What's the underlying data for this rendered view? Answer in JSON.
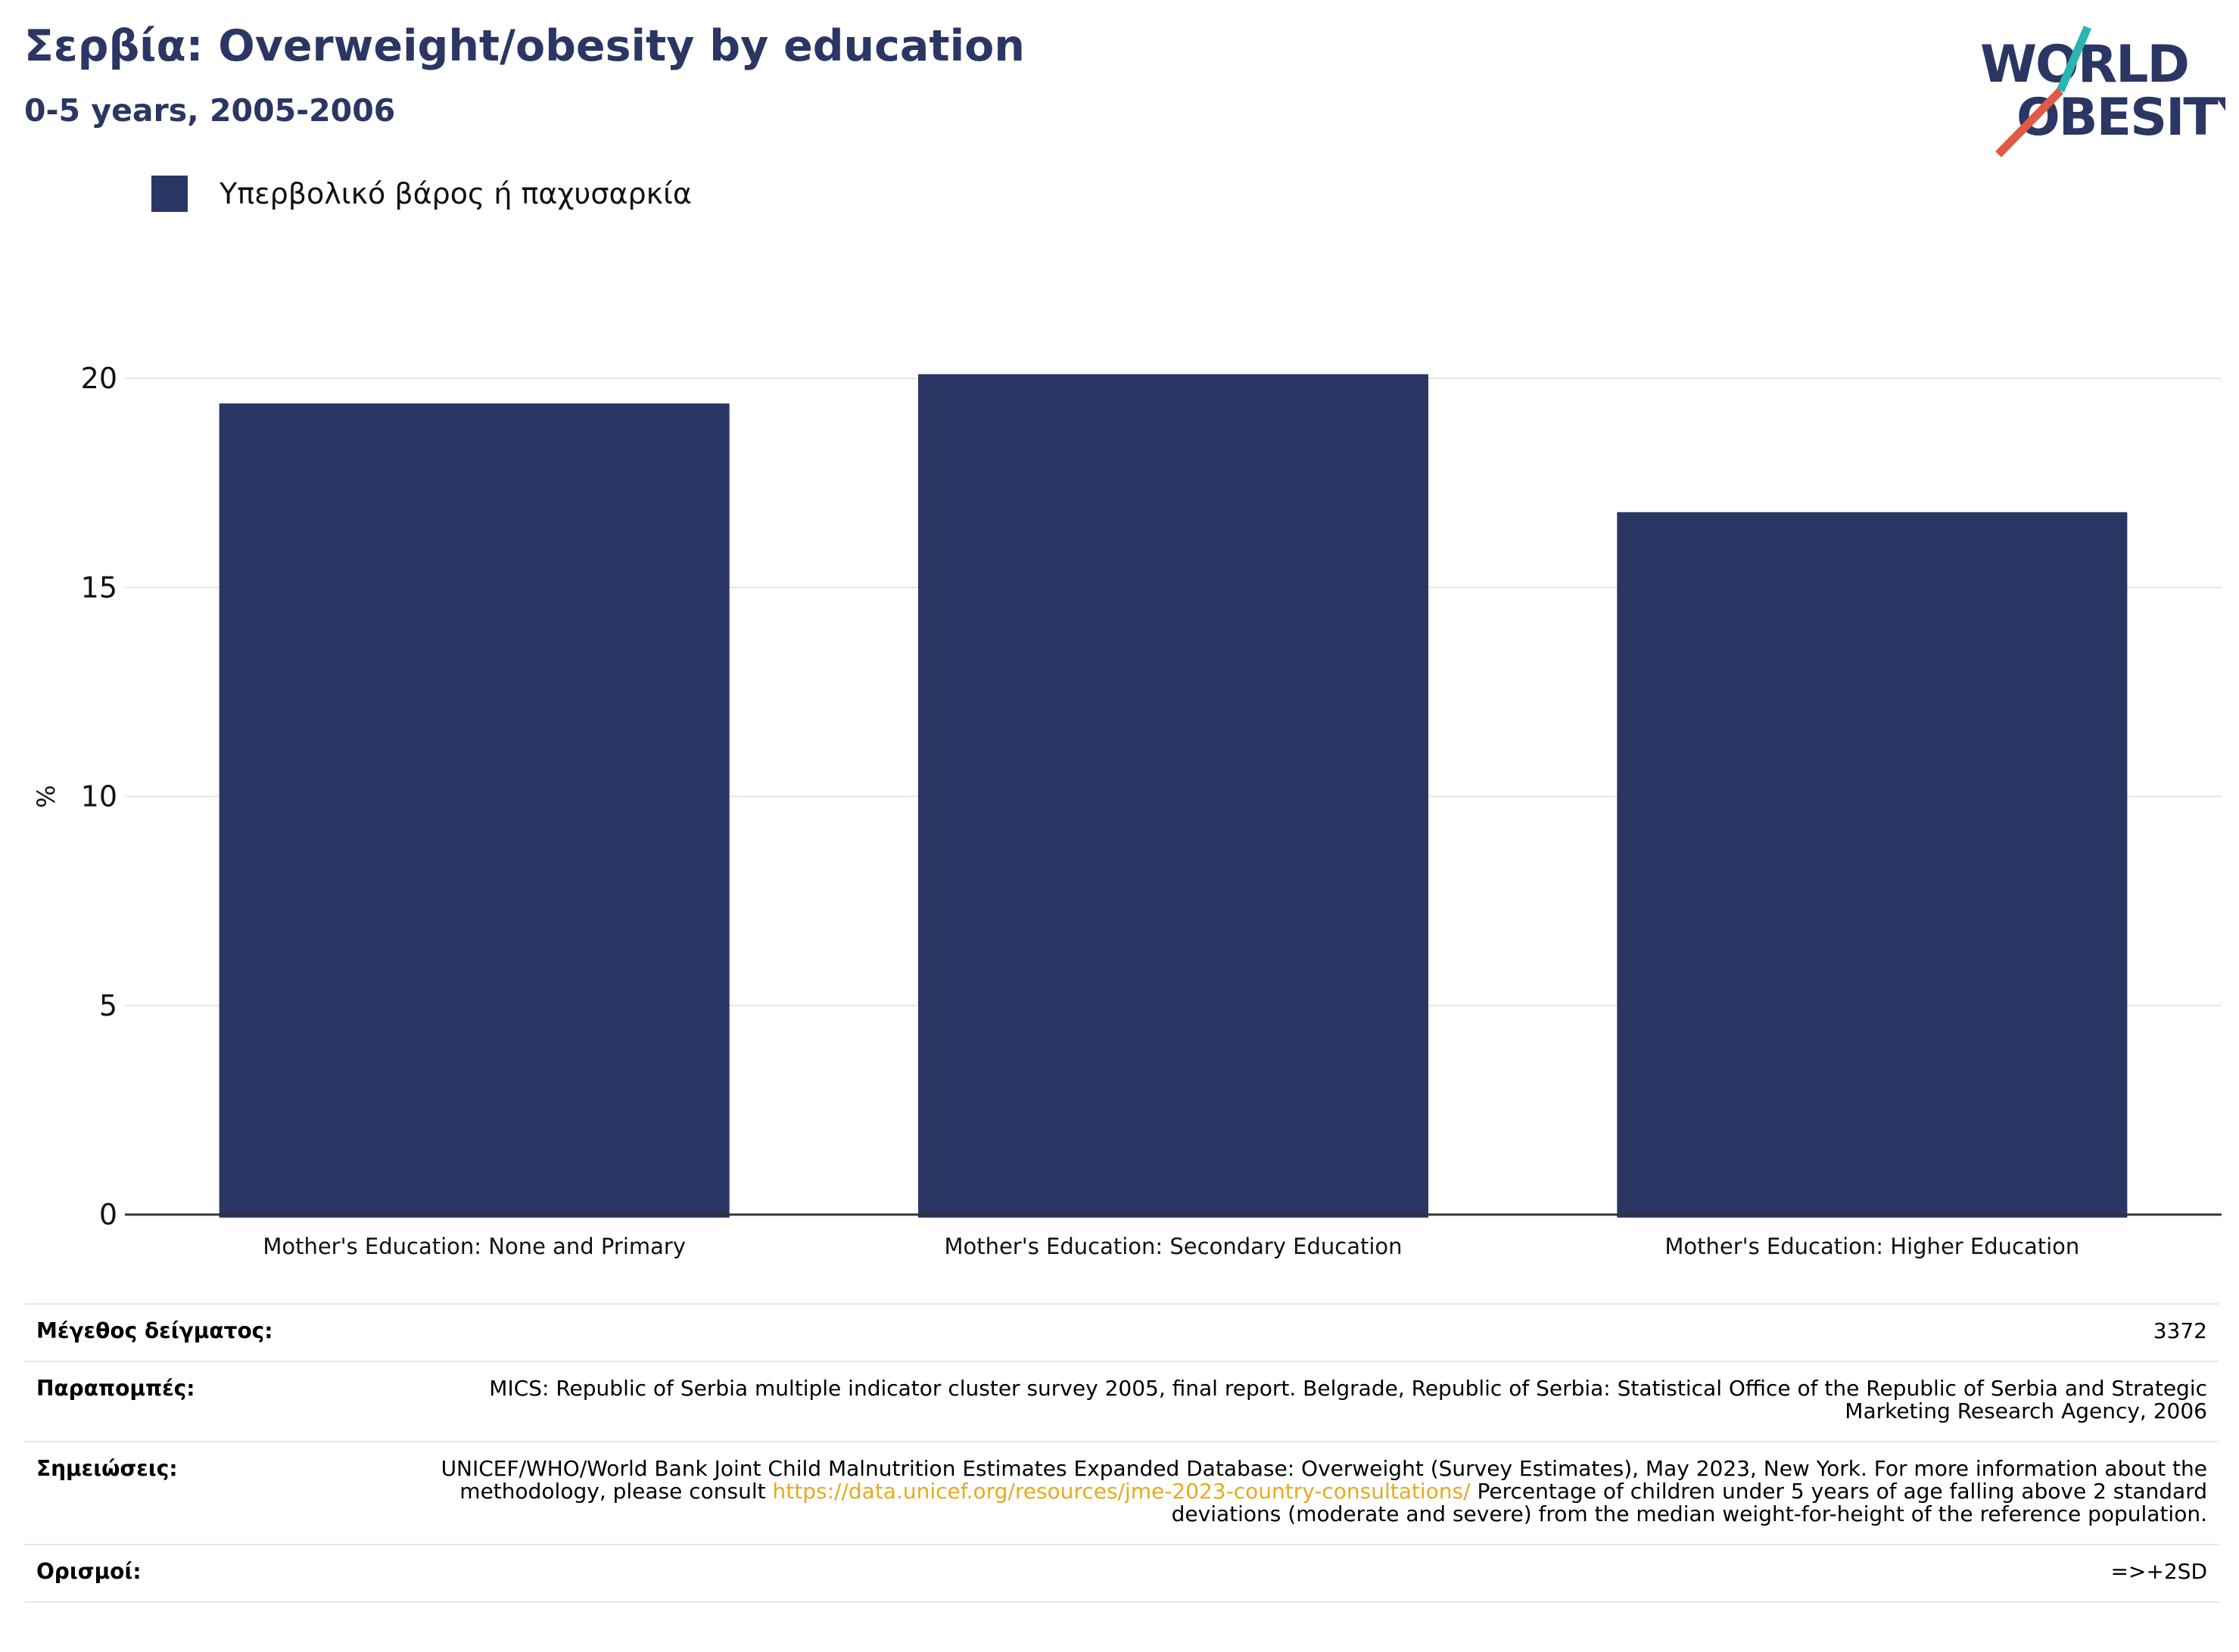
{
  "header": {
    "title": "Σερβία: Overweight/obesity by education",
    "subtitle": "0-5 years, 2005-2006"
  },
  "logo": {
    "line1": "WORLD",
    "line2": "OBESITY",
    "text_color": "#2a3663",
    "accent_teal": "#2bb5b0",
    "accent_red": "#e05a47"
  },
  "colors": {
    "bar": "#2a3663",
    "grid": "#e6e6e6",
    "axis": "#333333",
    "link": "#e8a91c"
  },
  "chart_data": {
    "type": "bar",
    "categories": [
      "Mother's Education: None and Primary",
      "Mother's Education: Secondary Education",
      "Mother's Education: Higher Education"
    ],
    "series": [
      {
        "name": "Υπερβολικό βάρος ή παχυσαρκία",
        "values": [
          19.4,
          20.1,
          16.8
        ],
        "color": "#2a3663"
      }
    ],
    "ylabel": "%",
    "xlabel": "",
    "ylim": [
      0,
      20
    ],
    "yticks": [
      0,
      5,
      10,
      15,
      20
    ],
    "grid": true,
    "legend": "top-left"
  },
  "info": {
    "sample_size": {
      "label": "Μέγεθος δείγματος:",
      "value": "3372"
    },
    "references": {
      "label": "Παραπομπές:",
      "value": "MICS: Republic of Serbia multiple indicator cluster survey 2005, final report. Belgrade, Republic of Serbia: Statistical Office of the Republic of Serbia and Strategic Marketing Research Agency, 2006"
    },
    "notes": {
      "label": "Σημειώσεις:",
      "before_link": "UNICEF/WHO/World Bank Joint Child Malnutrition Estimates Expanded Database: Overweight (Survey Estimates), May 2023, New York. For more information about the methodology, please consult ",
      "link": "https://data.unicef.org/resources/jme-2023-country-consultations/",
      "after_link": " Percentage of children under 5 years of age falling above 2 standard deviations (moderate and severe) from the median weight-for-height of the reference population."
    },
    "definitions": {
      "label": "Ορισμοί:",
      "value": "=>+2SD"
    }
  }
}
